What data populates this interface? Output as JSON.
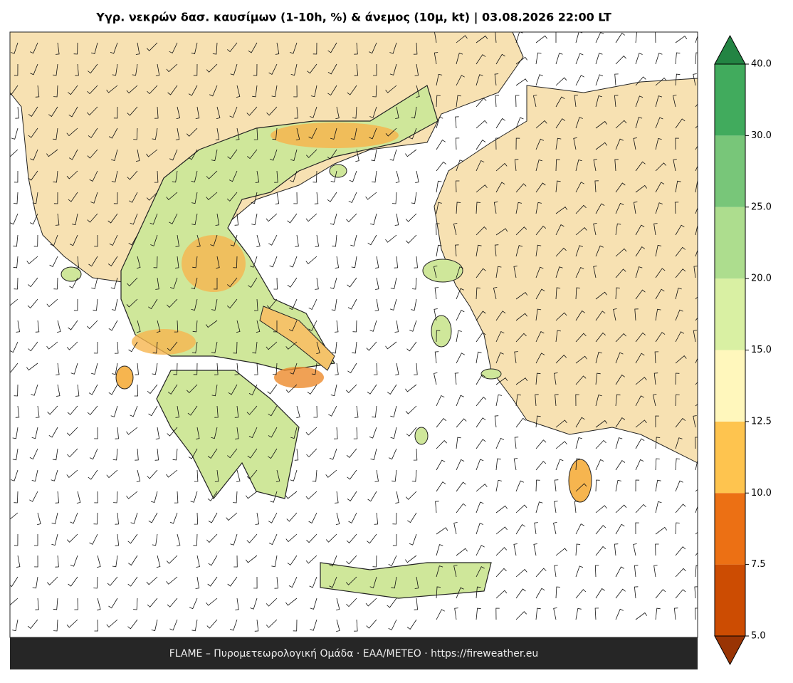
{
  "title": "Υγρ. νεκρών δασ. καυσίμων (1-10h, %) & άνεμος (10μ, kt)  |  03.08.2026 22:00 LT",
  "footer": "FLAME – Πυρομετεωρολογική Ομάδα · ΕΑΑ/METEO · https://fireweather.eu",
  "colorbar": {
    "ticks": [
      {
        "value": 5,
        "label": "5.0"
      },
      7.5,
      {
        "value": 10,
        "label": "10.0"
      },
      12.5,
      {
        "value": 15,
        "label": "15.0"
      },
      {
        "value": 20,
        "label": "20.0"
      },
      {
        "value": 25,
        "label": "25.0"
      },
      {
        "value": 30,
        "label": "30.0"
      },
      {
        "value": 40,
        "label": "40.0"
      }
    ],
    "colors": [
      "#cc4c02",
      "#ec7014",
      "#fec44f",
      "#fff7bc",
      "#d9f0a3",
      "#addd8e",
      "#78c679",
      "#41ab5d"
    ],
    "under_color": "#993404",
    "over_color": "#238443"
  }
}
